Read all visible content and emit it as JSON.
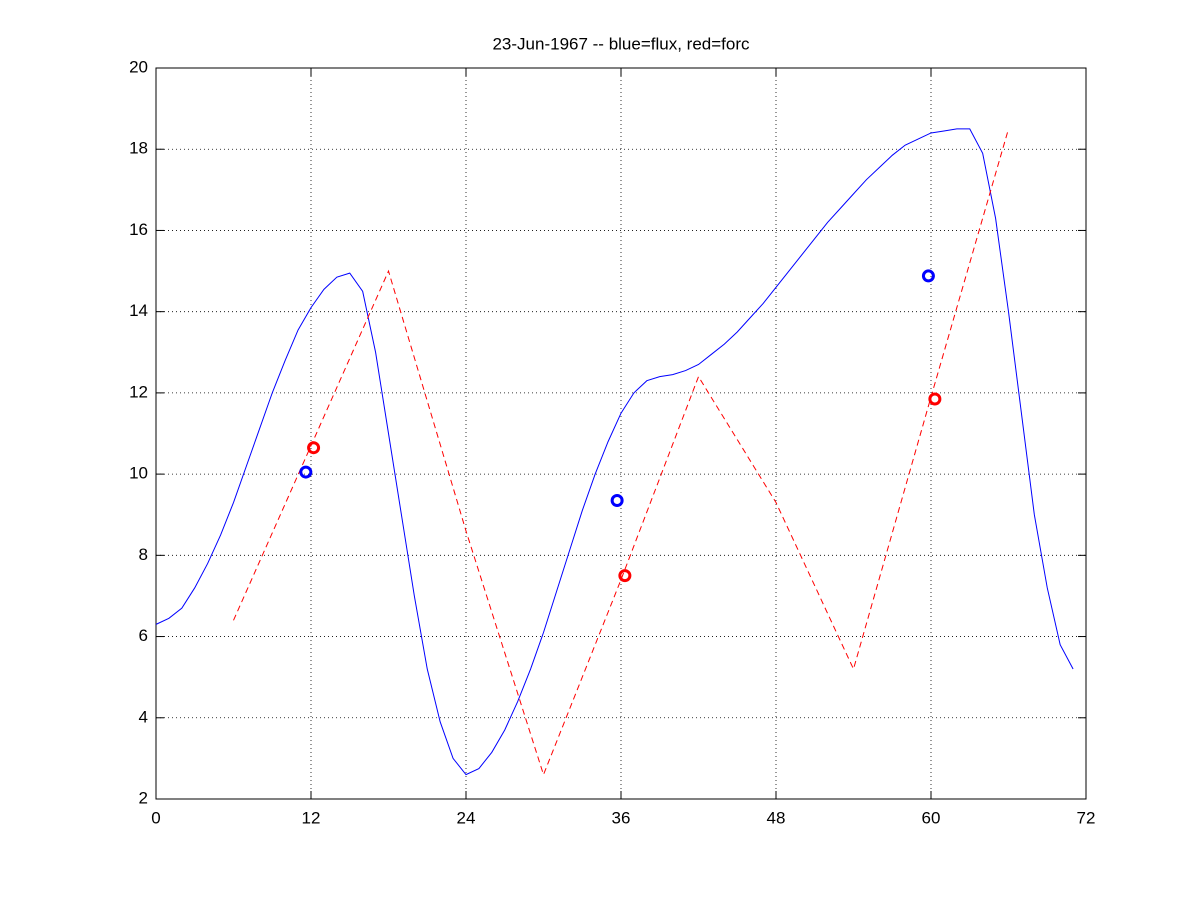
{
  "chart_data": {
    "type": "line",
    "title": "23-Jun-1967 -- blue=flux, red=forc",
    "xlim": [
      0,
      72
    ],
    "xticks": [
      0,
      12,
      24,
      36,
      48,
      60,
      72
    ],
    "ylim": [
      2,
      20
    ],
    "yticks": [
      2,
      4,
      6,
      8,
      10,
      12,
      14,
      16,
      18,
      20
    ],
    "grid": true,
    "series": [
      {
        "color": "#0000ff",
        "style": "solid",
        "marker": "none",
        "x": [
          0,
          1,
          2,
          3,
          4,
          5,
          6,
          7,
          8,
          9,
          10,
          11,
          12,
          13,
          14,
          15,
          16,
          17,
          18,
          19,
          20,
          21,
          22,
          23,
          24,
          25,
          26,
          27,
          28,
          29,
          30,
          31,
          32,
          33,
          34,
          35,
          36,
          37,
          38,
          39,
          40,
          41,
          42,
          43,
          44,
          45,
          46,
          47,
          48,
          49,
          50,
          51,
          52,
          53,
          54,
          55,
          56,
          57,
          58,
          59,
          60,
          61,
          62,
          63,
          64,
          65,
          66,
          67,
          68,
          69,
          70,
          71
        ],
        "values": [
          6.3,
          6.45,
          6.7,
          7.2,
          7.8,
          8.5,
          9.3,
          10.2,
          11.1,
          12.0,
          12.8,
          13.55,
          14.1,
          14.55,
          14.85,
          14.95,
          14.5,
          13.0,
          11.0,
          9.0,
          7.0,
          5.2,
          3.9,
          3.0,
          2.6,
          2.75,
          3.15,
          3.7,
          4.4,
          5.2,
          6.1,
          7.1,
          8.1,
          9.1,
          10.0,
          10.8,
          11.5,
          12.0,
          12.3,
          12.4,
          12.45,
          12.55,
          12.7,
          12.95,
          13.2,
          13.5,
          13.85,
          14.2,
          14.6,
          15.0,
          15.4,
          15.8,
          16.2,
          16.55,
          16.9,
          17.25,
          17.55,
          17.85,
          18.1,
          18.25,
          18.4,
          18.45,
          18.5,
          18.5,
          17.9,
          16.3,
          14.0,
          11.5,
          9.0,
          7.2,
          5.8,
          5.2
        ]
      },
      {
        "color": "#ff0000",
        "style": "dashed",
        "marker": "none",
        "x": [
          6,
          12,
          18,
          24,
          30,
          36,
          42,
          48,
          54,
          60,
          66
        ],
        "values": [
          6.4,
          10.7,
          15.0,
          8.6,
          2.6,
          7.4,
          12.4,
          9.3,
          5.2,
          11.9,
          18.5
        ]
      },
      {
        "color": "#0000ff",
        "style": "none",
        "marker": "circle",
        "x": [
          11.6,
          35.7,
          59.8
        ],
        "values": [
          10.05,
          9.35,
          14.88
        ]
      },
      {
        "color": "#ff0000",
        "style": "none",
        "marker": "circle",
        "x": [
          12.2,
          36.3,
          60.3
        ],
        "values": [
          10.65,
          7.5,
          11.85
        ]
      }
    ]
  }
}
